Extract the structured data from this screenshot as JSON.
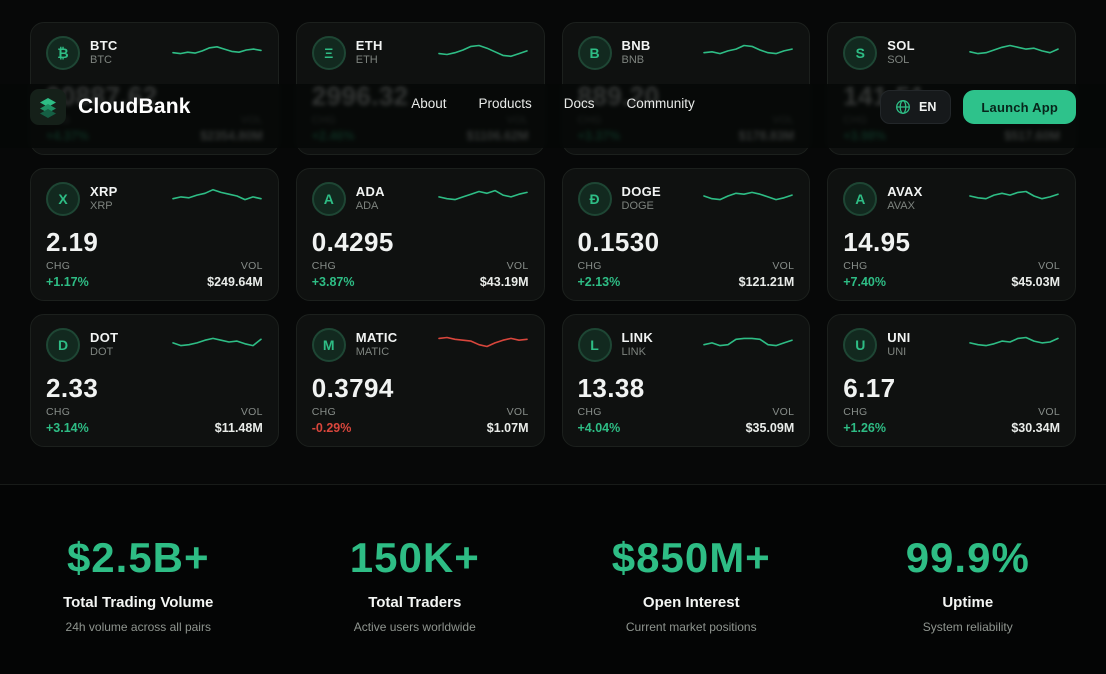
{
  "brand": {
    "name": "CloudBank",
    "logo_icon": "layers-cube-icon"
  },
  "nav": {
    "items": [
      "About",
      "Products",
      "Docs",
      "Community"
    ]
  },
  "header_actions": {
    "language": {
      "icon": "globe-icon",
      "label": "EN"
    },
    "launch_app_label": "Launch App"
  },
  "labels": {
    "chg": "CHG",
    "vol": "VOL"
  },
  "colors": {
    "accent_green": "#2EBD85",
    "negative_red": "#D8463C",
    "launch_button_bg": "#2EC28B",
    "card_bg": "#0F1110",
    "page_bg": "#070808"
  },
  "market_cards": [
    {
      "symbol": "BTC",
      "name": "BTC",
      "icon_letter": "₿",
      "price": "90887.62",
      "chg": "+4.37%",
      "trend": "up",
      "vol": "$2354.80M",
      "spark": [
        0.35,
        0.3,
        0.38,
        0.33,
        0.45,
        0.62,
        0.68,
        0.55,
        0.42,
        0.38,
        0.5,
        0.55,
        0.48
      ]
    },
    {
      "symbol": "ETH",
      "name": "ETH",
      "icon_letter": "Ξ",
      "price": "2996.32",
      "chg": "+2.46%",
      "trend": "up",
      "vol": "$1106.62M",
      "spark": [
        0.3,
        0.25,
        0.35,
        0.5,
        0.7,
        0.75,
        0.6,
        0.4,
        0.2,
        0.15,
        0.3,
        0.45
      ]
    },
    {
      "symbol": "BNB",
      "name": "BNB",
      "icon_letter": "B",
      "price": "889.20",
      "chg": "+3.37%",
      "trend": "up",
      "vol": "$178.83M",
      "spark": [
        0.35,
        0.4,
        0.3,
        0.45,
        0.55,
        0.75,
        0.7,
        0.5,
        0.35,
        0.3,
        0.45,
        0.55
      ]
    },
    {
      "symbol": "SOL",
      "name": "SOL",
      "icon_letter": "S",
      "price": "141.51",
      "chg": "+3.98%",
      "trend": "up",
      "vol": "$517.60M",
      "spark": [
        0.4,
        0.3,
        0.35,
        0.5,
        0.65,
        0.75,
        0.65,
        0.55,
        0.6,
        0.45,
        0.35,
        0.55
      ]
    },
    {
      "symbol": "XRP",
      "name": "XRP",
      "icon_letter": "X",
      "price": "2.19",
      "chg": "+1.17%",
      "trend": "up",
      "vol": "$249.64M",
      "spark": [
        0.35,
        0.45,
        0.4,
        0.55,
        0.65,
        0.85,
        0.7,
        0.6,
        0.5,
        0.3,
        0.45,
        0.35
      ]
    },
    {
      "symbol": "ADA",
      "name": "ADA",
      "icon_letter": "A",
      "price": "0.4295",
      "chg": "+3.87%",
      "trend": "up",
      "vol": "$43.19M",
      "spark": [
        0.45,
        0.35,
        0.3,
        0.45,
        0.6,
        0.75,
        0.65,
        0.8,
        0.55,
        0.45,
        0.6,
        0.7
      ]
    },
    {
      "symbol": "DOGE",
      "name": "DOGE",
      "icon_letter": "Đ",
      "price": "0.1530",
      "chg": "+2.13%",
      "trend": "up",
      "vol": "$121.21M",
      "spark": [
        0.5,
        0.35,
        0.3,
        0.5,
        0.65,
        0.6,
        0.7,
        0.6,
        0.45,
        0.3,
        0.4,
        0.55
      ]
    },
    {
      "symbol": "AVAX",
      "name": "AVAX",
      "icon_letter": "A",
      "price": "14.95",
      "chg": "+7.40%",
      "trend": "up",
      "vol": "$45.03M",
      "spark": [
        0.5,
        0.4,
        0.35,
        0.55,
        0.65,
        0.55,
        0.7,
        0.75,
        0.5,
        0.35,
        0.45,
        0.6
      ]
    },
    {
      "symbol": "DOT",
      "name": "DOT",
      "icon_letter": "D",
      "price": "2.33",
      "chg": "+3.14%",
      "trend": "up",
      "vol": "$11.48M",
      "spark": [
        0.45,
        0.3,
        0.35,
        0.45,
        0.6,
        0.7,
        0.6,
        0.5,
        0.55,
        0.4,
        0.3,
        0.65
      ]
    },
    {
      "symbol": "MATIC",
      "name": "MATIC",
      "icon_letter": "M",
      "price": "0.3794",
      "chg": "-0.29%",
      "trend": "down",
      "vol": "$1.07M",
      "spark": [
        0.7,
        0.75,
        0.65,
        0.6,
        0.55,
        0.35,
        0.25,
        0.45,
        0.6,
        0.7,
        0.6,
        0.65
      ]
    },
    {
      "symbol": "LINK",
      "name": "LINK",
      "icon_letter": "L",
      "price": "13.38",
      "chg": "+4.04%",
      "trend": "up",
      "vol": "$35.09M",
      "spark": [
        0.35,
        0.45,
        0.3,
        0.35,
        0.65,
        0.7,
        0.7,
        0.65,
        0.35,
        0.3,
        0.45,
        0.6
      ]
    },
    {
      "symbol": "UNI",
      "name": "UNI",
      "icon_letter": "U",
      "price": "6.17",
      "chg": "+1.26%",
      "trend": "up",
      "vol": "$30.34M",
      "spark": [
        0.45,
        0.35,
        0.3,
        0.4,
        0.55,
        0.5,
        0.7,
        0.75,
        0.55,
        0.45,
        0.5,
        0.7
      ]
    }
  ],
  "stats": {
    "items": [
      {
        "value": "$2.5B+",
        "title": "Total Trading Volume",
        "subtitle": "24h volume across all pairs"
      },
      {
        "value": "150K+",
        "title": "Total Traders",
        "subtitle": "Active users worldwide"
      },
      {
        "value": "$850M+",
        "title": "Open Interest",
        "subtitle": "Current market positions"
      },
      {
        "value": "99.9%",
        "title": "Uptime",
        "subtitle": "System reliability"
      }
    ]
  }
}
